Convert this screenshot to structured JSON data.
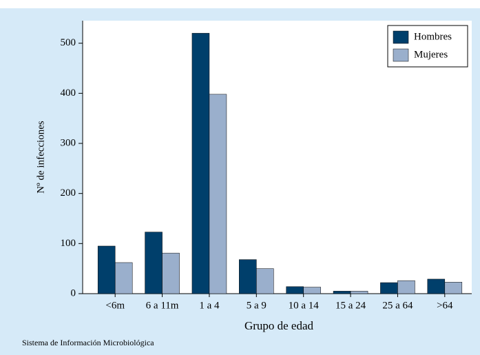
{
  "chart_data": {
    "type": "bar",
    "y_label": "Nº de infecciones",
    "x_label": "Grupo de edad",
    "source": "Sistema de Información Microbiológica",
    "categories": [
      "<6m",
      "6 a 11m",
      "1 a 4",
      "5 a 9",
      "10 a 14",
      "15 a 24",
      "25 a 64",
      ">64"
    ],
    "series": [
      {
        "name": "Hombres",
        "color": "#003f6b",
        "values": [
          95,
          123,
          520,
          68,
          14,
          5,
          22,
          29
        ]
      },
      {
        "name": "Mujeres",
        "color": "#9aafcc",
        "values": [
          62,
          81,
          398,
          50,
          13,
          5,
          26,
          23
        ]
      }
    ],
    "ylim": [
      0,
      545
    ],
    "yticks": [
      0,
      100,
      200,
      300,
      400,
      500
    ],
    "legend": "top-right",
    "grid": false
  }
}
